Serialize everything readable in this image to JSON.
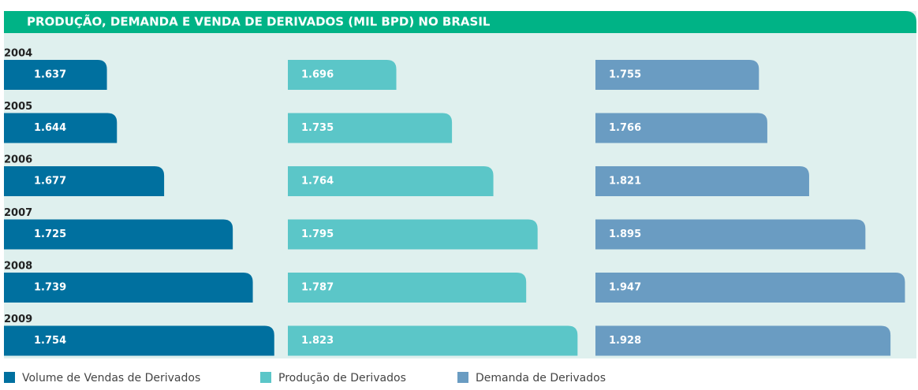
{
  "chart_data": {
    "type": "bar",
    "orientation": "horizontal",
    "title": "PRODUÇÃO, DEMANDA E VENDA DE DERIVADOS (MIL BPD) NO BRASIL",
    "categories": [
      "2004",
      "2005",
      "2006",
      "2007",
      "2008",
      "2009"
    ],
    "series": [
      {
        "name": "Volume de Vendas de Derivados",
        "color": "#00709f",
        "xlim": [
          1565,
          1758
        ],
        "values": [
          1637,
          1644,
          1677,
          1725,
          1739,
          1754
        ],
        "value_labels": [
          "1.637",
          "1.644",
          "1.677",
          "1.725",
          "1.739",
          "1.754"
        ]
      },
      {
        "name": "Produção de Derivados",
        "color": "#5bc6c8",
        "xlim": [
          1620,
          1830
        ],
        "values": [
          1696,
          1735,
          1764,
          1795,
          1787,
          1823
        ],
        "value_labels": [
          "1.696",
          "1.735",
          "1.764",
          "1.795",
          "1.787",
          "1.823"
        ]
      },
      {
        "name": "Demanda de Derivados",
        "color": "#6a9cc2",
        "xlim": [
          1540,
          1960
        ],
        "values": [
          1755,
          1766,
          1821,
          1895,
          1947,
          1928
        ],
        "value_labels": [
          "1.755",
          "1.766",
          "1.821",
          "1.895",
          "1.947",
          "1.928"
        ]
      }
    ]
  }
}
